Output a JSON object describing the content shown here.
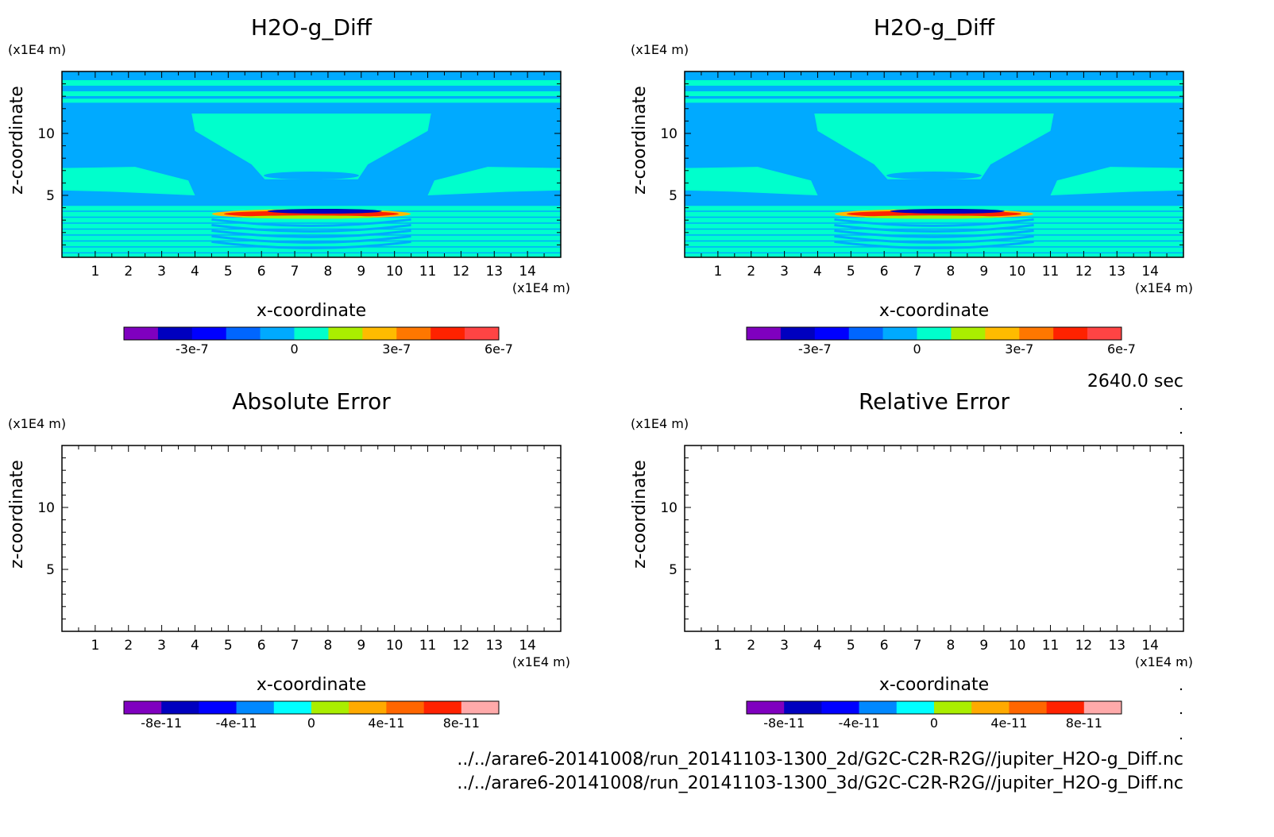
{
  "time_label": "2640.0 sec",
  "footer_lines": [
    "../../arare6-20141008/run_20141103-1300_2d/G2C-C2R-R2G//jupiter_H2O-g_Diff.nc",
    "../../arare6-20141008/run_20141103-1300_3d/G2C-C2R-R2G//jupiter_H2O-g_Diff.nc"
  ],
  "colors": {
    "background_field": "#00AAFF",
    "zero_band": "#00FFCC",
    "scale_small": [
      "#7F00BF",
      "#0000BF",
      "#0000FF",
      "#0066FF",
      "#00AAFF",
      "#00FFCC",
      "#AAEE00",
      "#FFBB00",
      "#FF7700",
      "#FF2200",
      "#FF4444"
    ],
    "scale_error": [
      "#7F00BF",
      "#0000BF",
      "#0000FF",
      "#0088FF",
      "#00FFFF",
      "#AAEE00",
      "#FFAA00",
      "#FF6600",
      "#FF2200",
      "#FFAAAA"
    ]
  },
  "chart_data": [
    {
      "type": "heatmap",
      "title": "H2O-g_Diff",
      "xlabel": "x-coordinate",
      "ylabel": "z-coordinate",
      "x_unit": "(x1E4 m)",
      "y_unit": "(x1E4 m)",
      "xlim": [
        0,
        15
      ],
      "ylim": [
        0,
        15
      ],
      "xticks": [
        1,
        2,
        3,
        4,
        5,
        6,
        7,
        8,
        9,
        10,
        11,
        12,
        13,
        14
      ],
      "yticks": [
        5,
        10
      ],
      "colorbar": {
        "levels": 11,
        "ticks": [
          "-3e-7",
          "0",
          "3e-7",
          "6e-7"
        ]
      },
      "has_field": true
    },
    {
      "type": "heatmap",
      "title": "H2O-g_Diff",
      "xlabel": "x-coordinate",
      "ylabel": "z-coordinate",
      "x_unit": "(x1E4 m)",
      "y_unit": "(x1E4 m)",
      "xlim": [
        0,
        15
      ],
      "ylim": [
        0,
        15
      ],
      "xticks": [
        1,
        2,
        3,
        4,
        5,
        6,
        7,
        8,
        9,
        10,
        11,
        12,
        13,
        14
      ],
      "yticks": [
        5,
        10
      ],
      "colorbar": {
        "levels": 11,
        "ticks": [
          "-3e-7",
          "0",
          "3e-7",
          "6e-7"
        ]
      },
      "has_field": true
    },
    {
      "type": "heatmap",
      "title": "Absolute Error",
      "xlabel": "x-coordinate",
      "ylabel": "z-coordinate",
      "x_unit": "(x1E4 m)",
      "y_unit": "(x1E4 m)",
      "xlim": [
        0,
        15
      ],
      "ylim": [
        0,
        15
      ],
      "xticks": [
        1,
        2,
        3,
        4,
        5,
        6,
        7,
        8,
        9,
        10,
        11,
        12,
        13,
        14
      ],
      "yticks": [
        5,
        10
      ],
      "colorbar": {
        "levels": 10,
        "ticks": [
          "-8e-11",
          "-4e-11",
          "0",
          "4e-11",
          "8e-11"
        ]
      },
      "has_field": false
    },
    {
      "type": "heatmap",
      "title": "Relative Error",
      "xlabel": "x-coordinate",
      "ylabel": "z-coordinate",
      "x_unit": "(x1E4 m)",
      "y_unit": "(x1E4 m)",
      "xlim": [
        0,
        15
      ],
      "ylim": [
        0,
        15
      ],
      "xticks": [
        1,
        2,
        3,
        4,
        5,
        6,
        7,
        8,
        9,
        10,
        11,
        12,
        13,
        14
      ],
      "yticks": [
        5,
        10
      ],
      "colorbar": {
        "levels": 10,
        "ticks": [
          "-8e-11",
          "-4e-11",
          "0",
          "4e-11",
          "8e-11"
        ]
      },
      "has_field": false
    }
  ]
}
